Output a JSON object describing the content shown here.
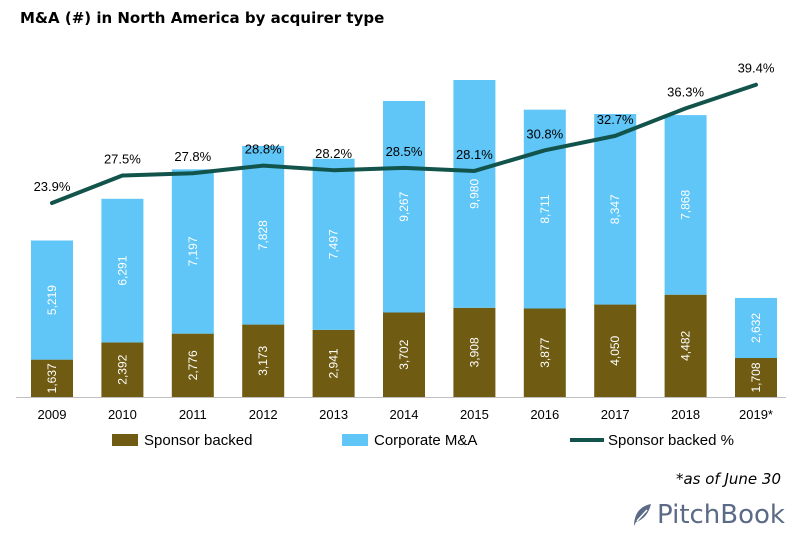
{
  "title": "M&A (#) in North America by acquirer type",
  "footnote": "*as of June 30",
  "brand": "PitchBook",
  "colors": {
    "sponsor": "#705b12",
    "corporate": "#5fc6f7",
    "line": "#12544b"
  },
  "chart_data": {
    "type": "bar",
    "stacked": true,
    "categories": [
      "2009",
      "2010",
      "2011",
      "2012",
      "2013",
      "2014",
      "2015",
      "2016",
      "2017",
      "2018",
      "2019*"
    ],
    "series": [
      {
        "name": "Sponsor backed",
        "type": "bar",
        "values": [
          1637,
          2392,
          2776,
          3173,
          2941,
          3702,
          3908,
          3877,
          4050,
          4482,
          1708
        ],
        "labels": [
          "1,637",
          "2,392",
          "2,776",
          "3,173",
          "2,941",
          "3,702",
          "3,908",
          "3,877",
          "4,050",
          "4,482",
          "1,708"
        ]
      },
      {
        "name": "Corporate M&A",
        "type": "bar",
        "values": [
          5219,
          6291,
          7197,
          7828,
          7497,
          9267,
          9980,
          8711,
          8347,
          7868,
          2632
        ],
        "labels": [
          "5,219",
          "6,291",
          "7,197",
          "7,828",
          "7,497",
          "9,267",
          "9,980",
          "8,711",
          "8,347",
          "7,868",
          "2,632"
        ]
      },
      {
        "name": "Sponsor backed %",
        "type": "line",
        "axis": "secondary",
        "values": [
          23.9,
          27.5,
          27.8,
          28.8,
          28.2,
          28.5,
          28.1,
          30.8,
          32.7,
          36.3,
          39.4
        ],
        "labels": [
          "23.9%",
          "27.5%",
          "27.8%",
          "28.8%",
          "28.2%",
          "28.5%",
          "28.1%",
          "30.8%",
          "32.7%",
          "36.3%",
          "39.4%"
        ]
      }
    ],
    "legend_position": "bottom",
    "grid": false
  }
}
